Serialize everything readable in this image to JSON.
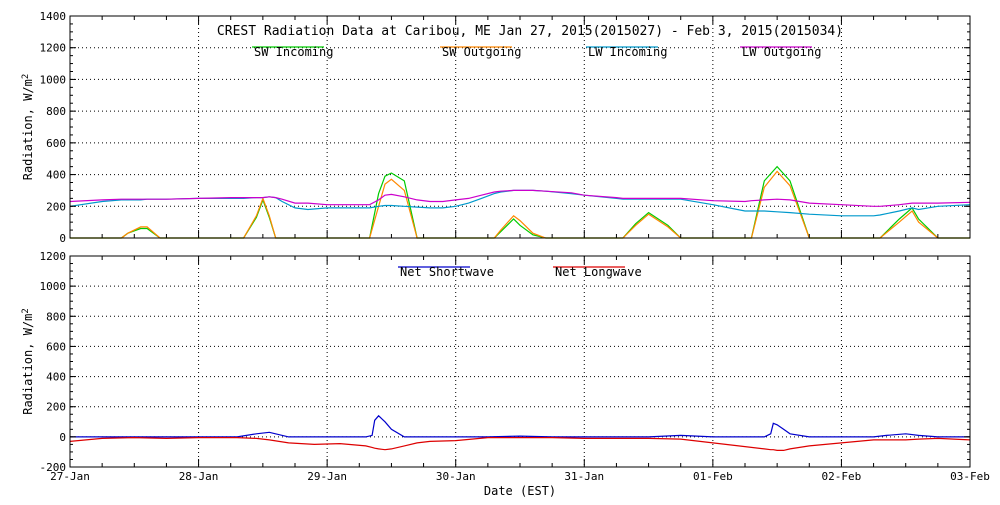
{
  "x_axis": {
    "label": "Date (EST)",
    "ticks": [
      "27-Jan",
      "28-Jan",
      "29-Jan",
      "30-Jan",
      "31-Jan",
      "01-Feb",
      "02-Feb",
      "03-Feb"
    ]
  },
  "chart_data": [
    {
      "type": "line",
      "title": "CREST Radiation Data at Caribou, ME   Jan 27, 2015(2015027) - Feb  3, 2015(2015034)",
      "ylabel": "Radiation, W/m^2",
      "ylim": [
        0,
        1400
      ],
      "yticks": [
        0,
        200,
        400,
        600,
        800,
        1000,
        1200,
        1400
      ],
      "xlim": [
        0,
        7
      ],
      "grid": true,
      "legend": "top",
      "x": [
        0,
        0.25,
        0.4,
        0.45,
        0.55,
        0.6,
        0.7,
        0.75,
        1,
        1.25,
        1.35,
        1.45,
        1.5,
        1.55,
        1.6,
        1.65,
        1.75,
        1.85,
        2,
        2.25,
        2.33,
        2.4,
        2.45,
        2.5,
        2.6,
        2.7,
        2.8,
        2.9,
        3,
        3.1,
        3.2,
        3.3,
        3.35,
        3.45,
        3.5,
        3.6,
        3.7,
        3.9,
        4,
        4.25,
        4.3,
        4.4,
        4.5,
        4.65,
        4.75,
        5,
        5.25,
        5.3,
        5.4,
        5.5,
        5.6,
        5.75,
        6,
        6.25,
        6.3,
        6.45,
        6.55,
        6.6,
        6.75,
        7
      ],
      "series": [
        {
          "name": "SW Incoming",
          "color": "#00cc00",
          "values": [
            0,
            0,
            0,
            30,
            60,
            60,
            0,
            0,
            0,
            0,
            0,
            130,
            240,
            130,
            0,
            0,
            0,
            0,
            0,
            0,
            0,
            280,
            390,
            410,
            360,
            0,
            0,
            0,
            0,
            0,
            0,
            0,
            40,
            120,
            80,
            20,
            0,
            0,
            0,
            0,
            0,
            90,
            160,
            80,
            0,
            0,
            0,
            0,
            360,
            450,
            360,
            0,
            0,
            0,
            0,
            120,
            190,
            120,
            0,
            0
          ]
        },
        {
          "name": "SW Outgoing",
          "color": "#ff8800",
          "values": [
            0,
            0,
            0,
            30,
            70,
            70,
            0,
            0,
            0,
            0,
            0,
            140,
            250,
            140,
            0,
            0,
            0,
            0,
            0,
            0,
            0,
            200,
            340,
            370,
            300,
            0,
            0,
            0,
            0,
            0,
            0,
            0,
            50,
            140,
            110,
            30,
            0,
            0,
            0,
            0,
            0,
            80,
            150,
            70,
            0,
            0,
            0,
            0,
            320,
            420,
            330,
            0,
            0,
            0,
            0,
            100,
            170,
            100,
            0,
            0
          ]
        },
        {
          "name": "LW Incoming",
          "color": "#0099cc",
          "values": [
            200,
            230,
            240,
            240,
            240,
            245,
            245,
            245,
            250,
            250,
            250,
            255,
            255,
            260,
            255,
            230,
            190,
            180,
            190,
            190,
            190,
            200,
            205,
            205,
            200,
            195,
            190,
            190,
            200,
            220,
            250,
            280,
            290,
            300,
            300,
            300,
            295,
            280,
            270,
            250,
            245,
            245,
            245,
            245,
            245,
            210,
            170,
            170,
            170,
            165,
            160,
            150,
            140,
            140,
            145,
            170,
            190,
            180,
            200,
            210
          ]
        },
        {
          "name": "LW Outgoing",
          "color": "#cc00cc",
          "values": [
            230,
            240,
            245,
            245,
            245,
            245,
            245,
            245,
            250,
            255,
            255,
            255,
            255,
            260,
            255,
            245,
            220,
            220,
            210,
            210,
            210,
            240,
            270,
            275,
            260,
            240,
            230,
            230,
            240,
            250,
            270,
            290,
            295,
            300,
            300,
            300,
            295,
            285,
            270,
            255,
            250,
            250,
            250,
            250,
            250,
            235,
            230,
            235,
            240,
            245,
            240,
            220,
            210,
            200,
            200,
            210,
            220,
            220,
            220,
            225
          ]
        }
      ]
    },
    {
      "type": "line",
      "ylabel": "Radiation, W/m^2",
      "ylim": [
        -200,
        1200
      ],
      "yticks": [
        -200,
        0,
        200,
        400,
        600,
        800,
        1000,
        1200
      ],
      "xlim": [
        0,
        7
      ],
      "grid": true,
      "legend": "top",
      "x": [
        0,
        0.25,
        0.5,
        0.75,
        1,
        1.3,
        1.45,
        1.55,
        1.7,
        1.9,
        2.1,
        2.3,
        2.35,
        2.37,
        2.4,
        2.45,
        2.5,
        2.6,
        2.7,
        2.8,
        3,
        3.25,
        3.5,
        3.75,
        4,
        4.25,
        4.5,
        4.75,
        5,
        5.2,
        5.4,
        5.45,
        5.47,
        5.5,
        5.55,
        5.6,
        5.75,
        6,
        6.25,
        6.35,
        6.5,
        6.6,
        6.75,
        7
      ],
      "series": [
        {
          "name": "Net Shortwave",
          "color": "#0000cc",
          "values": [
            0,
            0,
            0,
            0,
            0,
            0,
            20,
            30,
            0,
            0,
            0,
            0,
            10,
            110,
            140,
            100,
            50,
            0,
            0,
            0,
            0,
            0,
            5,
            0,
            0,
            0,
            0,
            10,
            0,
            0,
            0,
            20,
            90,
            80,
            50,
            20,
            0,
            0,
            0,
            10,
            20,
            10,
            0,
            0
          ]
        },
        {
          "name": "Net Longwave",
          "color": "#dd0000",
          "values": [
            -30,
            -10,
            -5,
            -10,
            -5,
            -5,
            -10,
            -20,
            -40,
            -50,
            -45,
            -60,
            -70,
            -75,
            -80,
            -85,
            -80,
            -60,
            -40,
            -30,
            -25,
            -5,
            -5,
            -5,
            -10,
            -10,
            -10,
            -15,
            -40,
            -60,
            -80,
            -85,
            -85,
            -90,
            -90,
            -80,
            -60,
            -40,
            -20,
            -20,
            -20,
            -15,
            -10,
            -20
          ]
        }
      ]
    }
  ]
}
